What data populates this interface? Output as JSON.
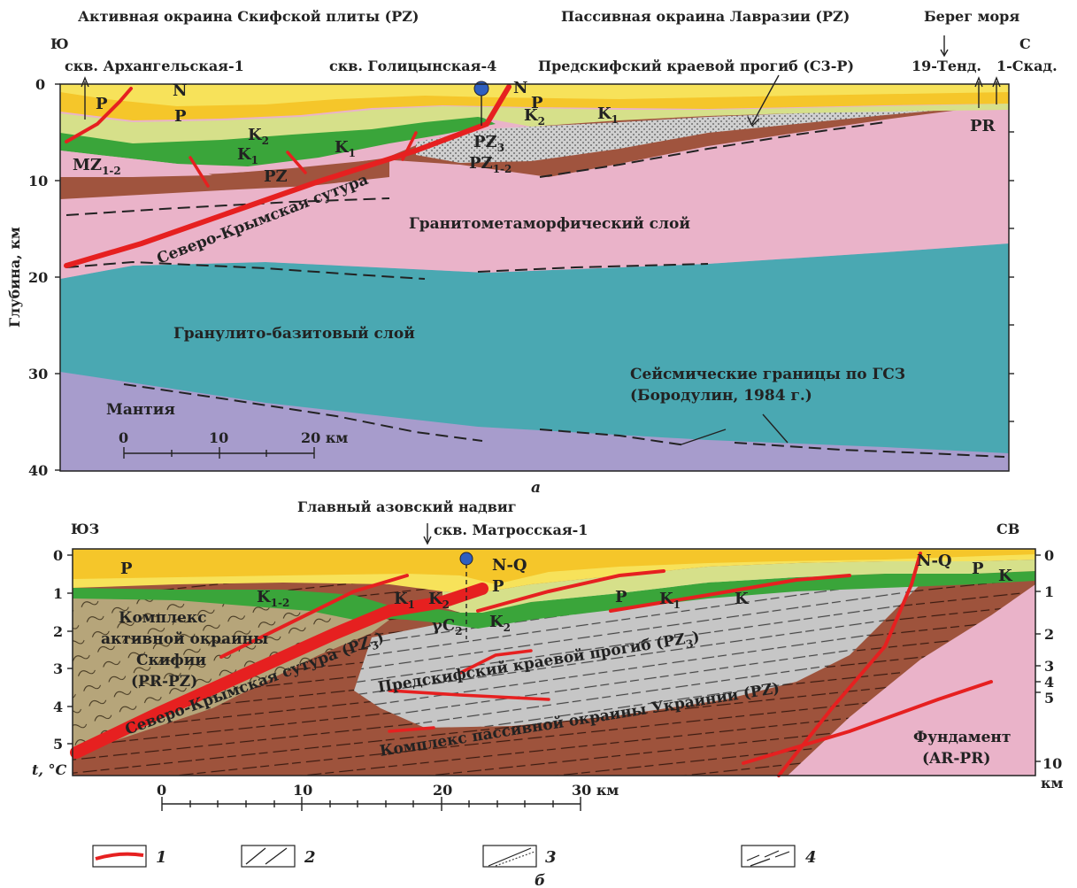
{
  "panel_a": {
    "caption": "а",
    "header_left": "Активная окраина Скифской плиты (PZ)",
    "header_right": "Пассивная окраина Лавразии (PZ)",
    "header_sea": "Берег моря",
    "dir_left": "Ю",
    "dir_right": "С",
    "well_1": "скв. Архангельская-1",
    "well_2": "скв. Голицынская-4",
    "trough_label": "Предскифский краевой прогиб (С3-Р)",
    "well_3": "19-Тенд.",
    "well_4": "1-Скад.",
    "y_axis_title": "Глубина, км",
    "y_ticks": [
      "0",
      "10",
      "20",
      "30",
      "40"
    ],
    "units": {
      "N": "N",
      "P": "P",
      "K2": "K",
      "K1": "K",
      "PZ3": "PZ",
      "PZ12": "PZ",
      "MZ12": "MZ",
      "PZ": "PZ",
      "PR": "PR",
      "sub_2": "2",
      "sub_1": "1",
      "sub_3": "3",
      "sub_12": "1-2"
    },
    "suture": "Северо-Крымская сутура",
    "granite_layer": "Гранитометаморфический слой",
    "granulite_layer": "Гранулито-базитовый слой",
    "mantle": "Мантия",
    "seismic_1": "Сейсмические границы по ГСЗ",
    "seismic_2": "(Бородулин, 1984 г.)",
    "scale_ticks": [
      "0",
      "10",
      "20 км"
    ]
  },
  "panel_b": {
    "caption": "б",
    "header": "Главный азовский надвиг",
    "well": "скв. Матросская-1",
    "dir_left": "ЮЗ",
    "dir_right": "СВ",
    "y_ticks_left": [
      "0",
      "1",
      "2",
      "3",
      "4",
      "5"
    ],
    "y_axis_title": "t, °С",
    "y_ticks_right": [
      "0",
      "1",
      "2",
      "3",
      "4",
      "5",
      "10"
    ],
    "y_unit_right": "км",
    "units": {
      "P": "P",
      "NQ": "N-Q",
      "K12": "K",
      "K1": "K",
      "K2": "K",
      "K": "K",
      "gC2": "γC",
      "sub_12": "1-2",
      "sub_1": "1",
      "sub_2": "2"
    },
    "active_1": "Комплекс",
    "active_2": "активной окраины",
    "active_3": "Скифии",
    "active_4": "(PR-PZ)",
    "suture": "Северо-Крымская сутура (PZ",
    "suture_sub": "3",
    "trough": "Предскифский краевой прогиб (PZ",
    "trough_sub": "3",
    "passive": "Комплекс пассивной окраины Украинии (PZ)",
    "basement_1": "Фундамент",
    "basement_2": "(AR-PR)",
    "scale_ticks": [
      "0",
      "10",
      "20",
      "30 км"
    ]
  },
  "legend": {
    "items": [
      "1",
      "2",
      "3",
      "4"
    ]
  },
  "colors": {
    "yellow": "#f5c62a",
    "light_yellow": "#f7e25a",
    "light_green": "#d6e08a",
    "green": "#3aa53a",
    "brown": "#a0543e",
    "pink": "#eab3c9",
    "teal": "#4aa8b2",
    "mantle": "#a79ccc",
    "grey": "#c4c4c4",
    "olive": "#b6a57a",
    "red": "#e62020"
  }
}
